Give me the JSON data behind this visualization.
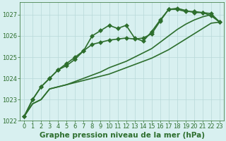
{
  "title": "Graphe pression niveau de la mer (hPa)",
  "background_color": "#d8f0f0",
  "grid_color": "#b8d8d8",
  "line_color": "#2d6e2d",
  "xlim": [
    -0.5,
    23.5
  ],
  "ylim": [
    1022.0,
    1027.6
  ],
  "yticks": [
    1022,
    1023,
    1024,
    1025,
    1026,
    1027
  ],
  "xticks": [
    0,
    1,
    2,
    3,
    4,
    5,
    6,
    7,
    8,
    9,
    10,
    11,
    12,
    13,
    14,
    15,
    16,
    17,
    18,
    19,
    20,
    21,
    22,
    23
  ],
  "series": [
    {
      "y": [
        1022.2,
        1023.0,
        1023.6,
        1024.0,
        1024.4,
        1024.6,
        1024.9,
        1025.3,
        1026.0,
        1026.25,
        1026.5,
        1026.35,
        1026.5,
        1025.9,
        1025.75,
        1026.2,
        1026.75,
        1027.25,
        1027.25,
        1027.15,
        1027.15,
        1027.1,
        1026.95,
        1026.65
      ],
      "marker": true,
      "linewidth": 1.2
    },
    {
      "y": [
        1022.2,
        1023.0,
        1023.6,
        1024.0,
        1024.4,
        1024.7,
        1025.0,
        1025.3,
        1025.6,
        1025.7,
        1025.8,
        1025.85,
        1025.9,
        1025.85,
        1025.9,
        1026.1,
        1026.7,
        1027.25,
        1027.3,
        1027.2,
        1027.1,
        1027.1,
        1027.05,
        1026.65
      ],
      "marker": true,
      "linewidth": 1.2
    },
    {
      "y": [
        1022.2,
        1022.8,
        1023.0,
        1023.5,
        1023.6,
        1023.7,
        1023.85,
        1024.0,
        1024.15,
        1024.3,
        1024.5,
        1024.65,
        1024.8,
        1025.0,
        1025.2,
        1025.4,
        1025.7,
        1026.0,
        1026.3,
        1026.55,
        1026.75,
        1026.9,
        1027.0,
        1026.65
      ],
      "marker": false,
      "linewidth": 1.2
    },
    {
      "y": [
        1022.2,
        1022.8,
        1023.0,
        1023.5,
        1023.6,
        1023.7,
        1023.8,
        1023.9,
        1024.0,
        1024.1,
        1024.2,
        1024.35,
        1024.5,
        1024.65,
        1024.8,
        1024.95,
        1025.15,
        1025.35,
        1025.6,
        1025.85,
        1026.1,
        1026.35,
        1026.6,
        1026.65
      ],
      "marker": false,
      "linewidth": 1.2
    }
  ],
  "marker": "D",
  "markersize": 3.0,
  "title_fontsize": 7.5,
  "tick_fontsize": 6.0,
  "title_color": "#2d6e2d",
  "tick_color": "#2d6e2d",
  "spine_color": "#2d6e2d"
}
